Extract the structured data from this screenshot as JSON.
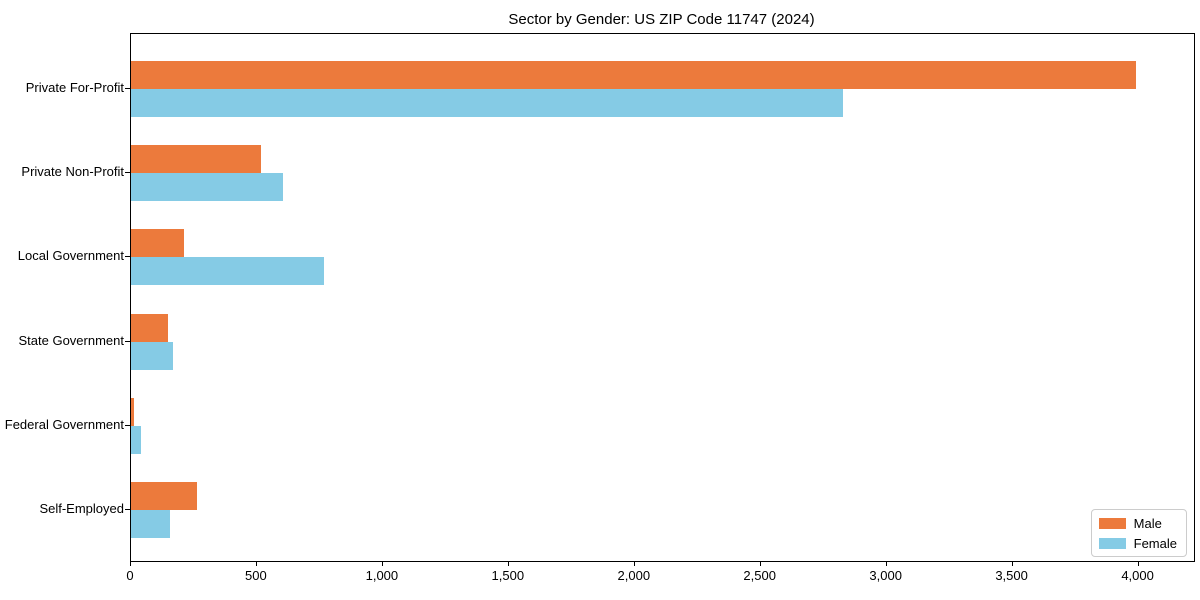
{
  "figure": {
    "background": "#ffffff",
    "text_color": "#000000",
    "axis_color": "#000000",
    "legend_border_color": "#cccccc"
  },
  "chart_data": {
    "type": "bar",
    "orientation": "horizontal",
    "title": "Sector by Gender: US ZIP Code 11747 (2024)",
    "xlabel": "",
    "ylabel": "",
    "categories": [
      "Private For-Profit",
      "Private Non-Profit",
      "Local Government",
      "State Government",
      "Federal Government",
      "Self-Employed"
    ],
    "series": [
      {
        "name": "Male",
        "color": "#ec7a3c",
        "values": [
          3990,
          515,
          210,
          145,
          12,
          260
        ]
      },
      {
        "name": "Female",
        "color": "#85cbe5",
        "values": [
          2825,
          605,
          765,
          165,
          38,
          155
        ]
      }
    ],
    "xlim": [
      0,
      4220
    ],
    "xticks": [
      0,
      500,
      1000,
      1500,
      2000,
      2500,
      3000,
      3500,
      4000
    ],
    "xtick_labels": [
      "0",
      "500",
      "1,000",
      "1,500",
      "2,000",
      "2,500",
      "3,000",
      "3,500",
      "4,000"
    ],
    "grid": false,
    "legend": {
      "position": "lower right",
      "labels": [
        "Male",
        "Female"
      ]
    }
  }
}
